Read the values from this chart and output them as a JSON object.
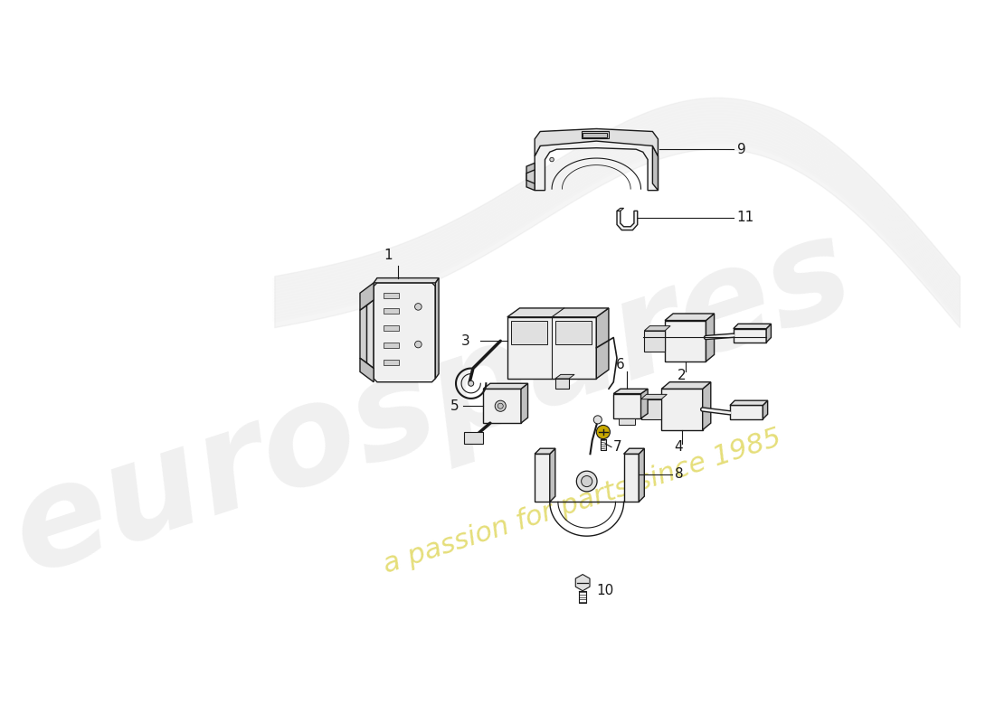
{
  "background": "#ffffff",
  "lc": "#1a1a1a",
  "lw": 1.0,
  "fig_width": 11.0,
  "fig_height": 8.0,
  "dpi": 100,
  "watermark1": "eurospares",
  "watermark2": "a passion for parts since 1985",
  "swoosh_color": "#cccccc",
  "label_fs": 11,
  "shade1": "#f0f0f0",
  "shade2": "#e0e0e0",
  "shade3": "#d0d0d0",
  "shade_dark": "#c0c0c0",
  "gold": "#c8a800"
}
